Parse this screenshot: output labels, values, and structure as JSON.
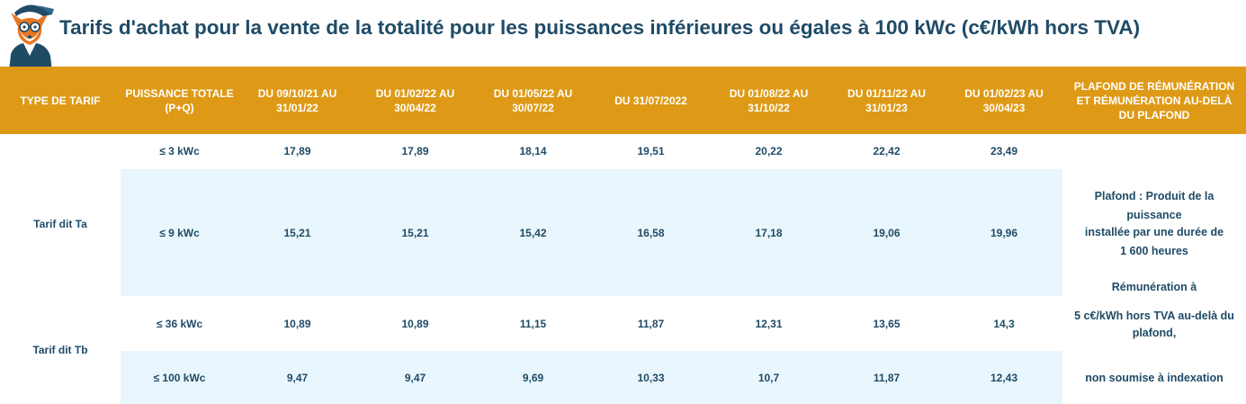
{
  "title": "Tarifs d'achat pour la vente de la totalité pour les puissances inférieures ou égales à 100 kWc (c€/kWh hors TVA)",
  "logo": {
    "icon": "fox-mascot-icon"
  },
  "colors": {
    "header": "#de9a16",
    "text": "#1f4b67",
    "band": "#eaf6fd"
  },
  "headers": [
    "TYPE DE TARIF",
    "PUISSANCE TOTALE\n(P+Q)",
    "DU 09/10/21 AU\n31/01/22",
    "DU 01/02/22 AU\n30/04/22",
    "DU 01/05/22 AU\n30/07/22",
    "DU 31/07/2022",
    "DU 01/08/22 AU\n31/10/22",
    "DU 01/11/22 AU\n31/01/23",
    "DU 01/02/23 AU\n30/04/23",
    "PLAFOND DE RÉMUNÉRATION\nET RÉMUNÉRATION AU-DELÀ\nDU PLAFOND"
  ],
  "tarif_types": [
    "Tarif dit Ta",
    "Tarif dit Tb"
  ],
  "rows": [
    {
      "power": "≤ 3 kWc",
      "values": [
        "17,89",
        "17,89",
        "18,14",
        "19,51",
        "20,22",
        "22,42",
        "23,49"
      ]
    },
    {
      "power": "≤ 9 kWc",
      "values": [
        "15,21",
        "15,21",
        "15,42",
        "16,58",
        "17,18",
        "19,06",
        "19,96"
      ]
    },
    {
      "power": "≤ 36 kWc",
      "values": [
        "10,89",
        "10,89",
        "11,15",
        "11,87",
        "12,31",
        "13,65",
        "14,3"
      ]
    },
    {
      "power": "≤ 100 kWc",
      "values": [
        "9,47",
        "9,47",
        "9,69",
        "10,33",
        "10,7",
        "11,87",
        "12,43"
      ]
    }
  ],
  "plafond": [
    "Plafond : Produit de la",
    "puissance",
    "installée par une durée de",
    "1 600 heures",
    "Rémunération à",
    "5 c€/kWh hors TVA au-delà du",
    "plafond,",
    "non soumise à indexation"
  ]
}
